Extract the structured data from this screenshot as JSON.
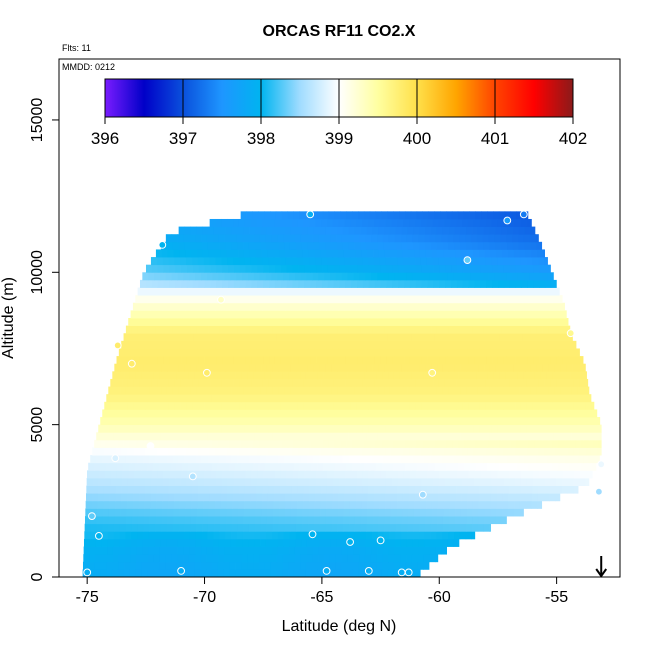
{
  "chart_data": {
    "type": "heatmap",
    "title": "ORCAS RF11 CO2.X",
    "flights_note": "Flts: 11",
    "date_note": "MMDD: 0212",
    "xlabel": "Latitude (deg N)",
    "ylabel": "Altitude (m)",
    "xlim": [
      -76.2,
      -52.3
    ],
    "ylim": [
      0,
      17000
    ],
    "x_ticks": [
      -75,
      -70,
      -65,
      -60,
      -55
    ],
    "x_tick_labels": [
      "-75",
      "-70",
      "-65",
      "-60",
      "-55"
    ],
    "y_ticks": [
      0,
      5000,
      10000,
      15000
    ],
    "y_tick_labels": [
      "0",
      "5000",
      "10000",
      "15000"
    ],
    "colorbar": {
      "min": 396,
      "max": 402,
      "ticks": [
        396,
        397,
        398,
        399,
        400,
        401,
        402
      ],
      "tick_labels": [
        "396",
        "397",
        "398",
        "399",
        "400",
        "401",
        "402"
      ],
      "colors": [
        "#7a1cff",
        "#0000c8",
        "#0a50dc",
        "#1e96ff",
        "#00b4f0",
        "#a0dcff",
        "#ffffff",
        "#ffffa0",
        "#ffe04a",
        "#ffa500",
        "#ff4400",
        "#ff0000",
        "#8b1a1a"
      ]
    },
    "field_profile": {
      "altitudes_m": [
        0,
        1000,
        2000,
        3000,
        4000,
        5000,
        6000,
        7000,
        8000,
        9000,
        10000,
        11000,
        12000
      ],
      "co2_ppm": [
        397.8,
        397.9,
        398.2,
        398.6,
        398.9,
        399.4,
        399.7,
        399.8,
        399.75,
        399.2,
        398.4,
        398.0,
        397.8
      ]
    },
    "coverage": {
      "lat_south": -75.2,
      "lat_north_by_altitude": {
        "altitudes_m": [
          0,
          1000,
          2000,
          3000,
          4000,
          5000,
          6000,
          7000,
          8000,
          9000,
          10000,
          11000,
          12000
        ],
        "lat_north": [
          -61.0,
          -59.5,
          -56.8,
          -53.7,
          -53.1,
          -53.1,
          -53.6,
          -53.8,
          -54.4,
          -54.7,
          -55.2,
          -55.7,
          -56.3
        ]
      },
      "bottom_altitude_m": 0,
      "top_altitude_m": 12000,
      "left_edge_altitudes_m": [
        0,
        3500,
        7000,
        10000,
        11300,
        12000
      ],
      "left_edge_lats": [
        -75.2,
        -75.0,
        -73.8,
        -72.6,
        -71.5,
        -67.8
      ]
    },
    "samples": [
      {
        "lat": -75.0,
        "alt": 150,
        "co2": 397.9
      },
      {
        "lat": -74.8,
        "alt": 2000,
        "co2": 398.3
      },
      {
        "lat": -74.5,
        "alt": 1350,
        "co2": 398.0
      },
      {
        "lat": -73.8,
        "alt": 3900,
        "co2": 398.8
      },
      {
        "lat": -73.7,
        "alt": 7600,
        "co2": 399.8
      },
      {
        "lat": -73.1,
        "alt": 7000,
        "co2": 399.8
      },
      {
        "lat": -72.3,
        "alt": 4300,
        "co2": 399.0
      },
      {
        "lat": -71.8,
        "alt": 10900,
        "co2": 398.0
      },
      {
        "lat": -71.0,
        "alt": 200,
        "co2": 397.9
      },
      {
        "lat": -70.5,
        "alt": 3300,
        "co2": 398.6
      },
      {
        "lat": -69.9,
        "alt": 6700,
        "co2": 399.8
      },
      {
        "lat": -69.3,
        "alt": 9100,
        "co2": 399.3
      },
      {
        "lat": -65.5,
        "alt": 11900,
        "co2": 397.9
      },
      {
        "lat": -65.4,
        "alt": 1400,
        "co2": 398.0
      },
      {
        "lat": -64.8,
        "alt": 200,
        "co2": 397.9
      },
      {
        "lat": -63.8,
        "alt": 1150,
        "co2": 398.0
      },
      {
        "lat": -63.0,
        "alt": 200,
        "co2": 397.9
      },
      {
        "lat": -62.5,
        "alt": 1200,
        "co2": 398.0
      },
      {
        "lat": -61.6,
        "alt": 150,
        "co2": 397.9
      },
      {
        "lat": -61.3,
        "alt": 150,
        "co2": 397.9
      },
      {
        "lat": -60.7,
        "alt": 2700,
        "co2": 398.5
      },
      {
        "lat": -60.3,
        "alt": 6700,
        "co2": 399.7
      },
      {
        "lat": -58.8,
        "alt": 10400,
        "co2": 398.3
      },
      {
        "lat": -57.1,
        "alt": 11700,
        "co2": 397.6
      },
      {
        "lat": -56.4,
        "alt": 11900,
        "co2": 397.3
      },
      {
        "lat": -54.4,
        "alt": 8000,
        "co2": 399.6
      },
      {
        "lat": -53.1,
        "alt": 3700,
        "co2": 398.9
      },
      {
        "lat": -53.2,
        "alt": 2800,
        "co2": 398.5
      }
    ],
    "marker": {
      "type": "arrow-down",
      "lat": -53.1
    }
  }
}
